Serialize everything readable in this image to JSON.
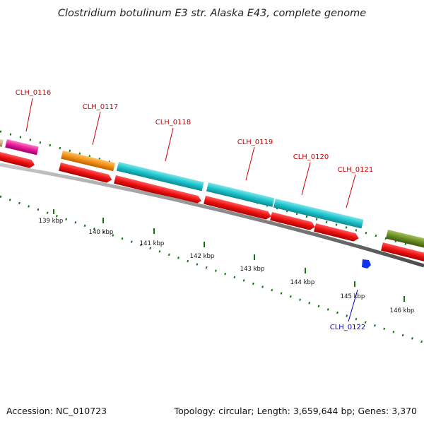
{
  "title": "Clostridium botulinum E3 str. Alaska E43, complete genome",
  "footer": {
    "accession": "Accession: NC_010723",
    "summary": "Topology: circular; Length: 3,659,644 bp; Genes: 3,370"
  },
  "scale_labels": [
    "139 kbp",
    "140 kbp",
    "141 kbp",
    "142 kbp",
    "143 kbp",
    "144 kbp",
    "145 kbp",
    "146 kbp"
  ],
  "genes": [
    {
      "id": "CLH_0116",
      "strand": "forward",
      "color": "#cc0000"
    },
    {
      "id": "CLH_0117",
      "strand": "forward",
      "color": "#cc0000"
    },
    {
      "id": "CLH_0118",
      "strand": "forward",
      "color": "#cc0000"
    },
    {
      "id": "CLH_0119",
      "strand": "forward",
      "color": "#cc0000"
    },
    {
      "id": "CLH_0120",
      "strand": "forward",
      "color": "#cc0000"
    },
    {
      "id": "CLH_0121",
      "strand": "forward",
      "color": "#cc0000"
    },
    {
      "id": "CLH_0122",
      "strand": "reverse",
      "color": "#0000cc"
    }
  ],
  "colors": {
    "cds_arrow": "#ee1111",
    "backbone": "#888888",
    "tick": "#117711",
    "reverse_feature": "#1133ee",
    "feature_tan": "#c8b48c",
    "feature_magenta": "#e8199a",
    "feature_orange": "#f39016",
    "feature_cyan": "#1cc4cc",
    "feature_olive": "#6b8e23"
  }
}
